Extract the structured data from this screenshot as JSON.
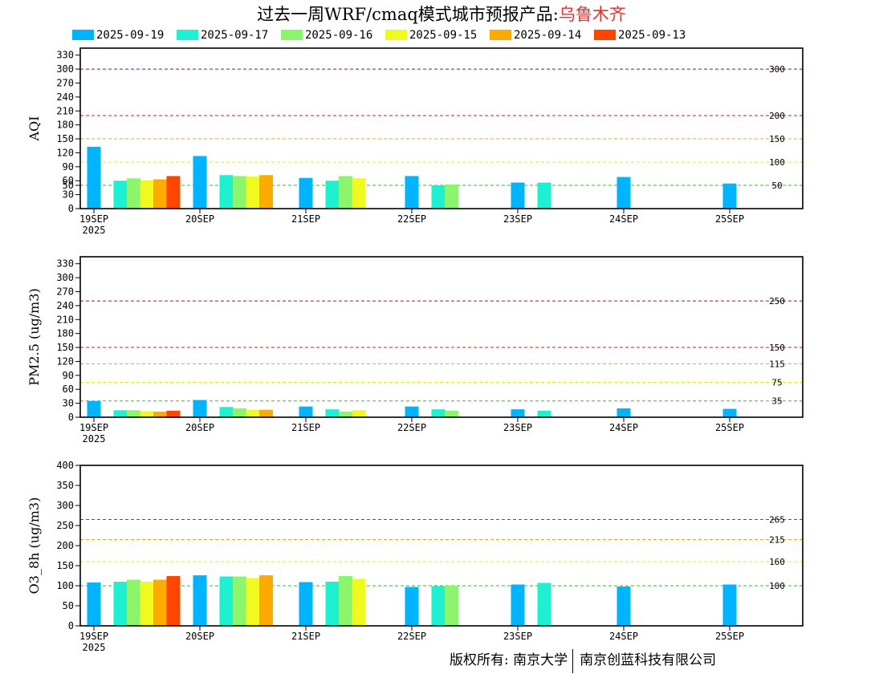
{
  "title": {
    "prefix": "过去一周WRF/cmaq模式城市预报产品:",
    "city": "乌鲁木齐",
    "city_color": "#e03030"
  },
  "legend": [
    {
      "label": "2025-09-19",
      "color": "#00b4ff"
    },
    {
      "label": "2025-09-17",
      "color": "#1ef0d2"
    },
    {
      "label": "2025-09-16",
      "color": "#8cf56e"
    },
    {
      "label": "2025-09-15",
      "color": "#f0fa1e"
    },
    {
      "label": "2025-09-14",
      "color": "#ffaa00"
    },
    {
      "label": "2025-09-13",
      "color": "#ff4600"
    }
  ],
  "footer": {
    "left": "版权所有: 南京大学",
    "right": "南京创蓝科技有限公司"
  },
  "chart_data": [
    {
      "type": "bar",
      "ylabel": "AQI",
      "ylim": [
        0,
        345
      ],
      "yticks": [
        0,
        30,
        50,
        60,
        90,
        120,
        150,
        180,
        210,
        240,
        270,
        300,
        330
      ],
      "x_tick_labels": [
        "19SEP",
        "20SEP",
        "21SEP",
        "22SEP",
        "23SEP",
        "24SEP",
        "25SEP"
      ],
      "x_year_label": "2025",
      "thresholds": [
        {
          "value": 50,
          "label": "50",
          "color": "#2ec02e"
        },
        {
          "value": 100,
          "label": "100",
          "color": "#e8e820"
        },
        {
          "value": 150,
          "label": "150",
          "color": "#f0a020"
        },
        {
          "value": 200,
          "label": "200",
          "color": "#d02020"
        },
        {
          "value": 300,
          "label": "300",
          "color": "#a01050"
        }
      ],
      "groups": [
        {
          "day": "19SEP",
          "values": [
            133,
            60,
            65,
            61,
            63,
            70
          ]
        },
        {
          "day": "20SEP",
          "values": [
            113,
            72,
            70,
            69,
            72,
            null
          ]
        },
        {
          "day": "21SEP",
          "values": [
            66,
            60,
            70,
            65,
            null,
            null
          ]
        },
        {
          "day": "22SEP",
          "values": [
            70,
            50,
            52,
            null,
            null,
            null
          ]
        },
        {
          "day": "23SEP",
          "values": [
            56,
            56,
            null,
            null,
            null,
            null
          ]
        },
        {
          "day": "24SEP",
          "values": [
            68,
            null,
            null,
            null,
            null,
            null
          ]
        },
        {
          "day": "25SEP",
          "values": [
            54,
            null,
            null,
            null,
            null,
            null
          ]
        }
      ]
    },
    {
      "type": "bar",
      "ylabel": "PM2.5 (ug/m3)",
      "ylim": [
        0,
        345
      ],
      "yticks": [
        0,
        30,
        60,
        90,
        120,
        150,
        180,
        210,
        240,
        270,
        300,
        330
      ],
      "x_tick_labels": [
        "19SEP",
        "20SEP",
        "21SEP",
        "22SEP",
        "23SEP",
        "24SEP",
        "25SEP"
      ],
      "x_year_label": "2025",
      "thresholds": [
        {
          "value": 35,
          "label": "35",
          "color": "#2ec02e"
        },
        {
          "value": 75,
          "label": "75",
          "color": "#e8e820"
        },
        {
          "value": 115,
          "label": "115",
          "color": "#f0a020"
        },
        {
          "value": 150,
          "label": "150",
          "color": "#d02020"
        },
        {
          "value": 250,
          "label": "250",
          "color": "#a01050"
        }
      ],
      "groups": [
        {
          "day": "19SEP",
          "values": [
            35,
            15,
            15,
            13,
            12,
            14
          ]
        },
        {
          "day": "20SEP",
          "values": [
            37,
            22,
            19,
            16,
            16,
            null
          ]
        },
        {
          "day": "21SEP",
          "values": [
            23,
            17,
            12,
            15,
            null,
            null
          ]
        },
        {
          "day": "22SEP",
          "values": [
            23,
            17,
            14,
            null,
            null,
            null
          ]
        },
        {
          "day": "23SEP",
          "values": [
            17,
            14,
            null,
            null,
            null,
            null
          ]
        },
        {
          "day": "24SEP",
          "values": [
            19,
            null,
            null,
            null,
            null,
            null
          ]
        },
        {
          "day": "25SEP",
          "values": [
            18,
            null,
            null,
            null,
            null,
            null
          ]
        }
      ]
    },
    {
      "type": "bar",
      "ylabel": "O3_8h (ug/m3)",
      "ylim": [
        0,
        400
      ],
      "yticks": [
        0,
        50,
        100,
        150,
        200,
        250,
        300,
        350,
        400
      ],
      "x_tick_labels": [
        "19SEP",
        "20SEP",
        "21SEP",
        "22SEP",
        "23SEP",
        "24SEP",
        "25SEP"
      ],
      "x_year_label": "2025",
      "thresholds": [
        {
          "value": 100,
          "label": "100",
          "color": "#2ec02e"
        },
        {
          "value": 160,
          "label": "160",
          "color": "#e8e820"
        },
        {
          "value": 215,
          "label": "215",
          "color": "#f0a020"
        },
        {
          "value": 265,
          "label": "265",
          "color": "#d02020"
        }
      ],
      "groups": [
        {
          "day": "19SEP",
          "values": [
            108,
            110,
            115,
            110,
            115,
            124
          ]
        },
        {
          "day": "20SEP",
          "values": [
            126,
            123,
            123,
            119,
            126,
            null
          ]
        },
        {
          "day": "21SEP",
          "values": [
            109,
            110,
            124,
            117,
            null,
            null
          ]
        },
        {
          "day": "22SEP",
          "values": [
            97,
            99,
            100,
            null,
            null,
            null
          ]
        },
        {
          "day": "23SEP",
          "values": [
            103,
            107,
            null,
            null,
            null,
            null
          ]
        },
        {
          "day": "24SEP",
          "values": [
            98,
            null,
            null,
            null,
            null,
            null
          ]
        },
        {
          "day": "25SEP",
          "values": [
            103,
            null,
            null,
            null,
            null,
            null
          ]
        }
      ]
    }
  ]
}
